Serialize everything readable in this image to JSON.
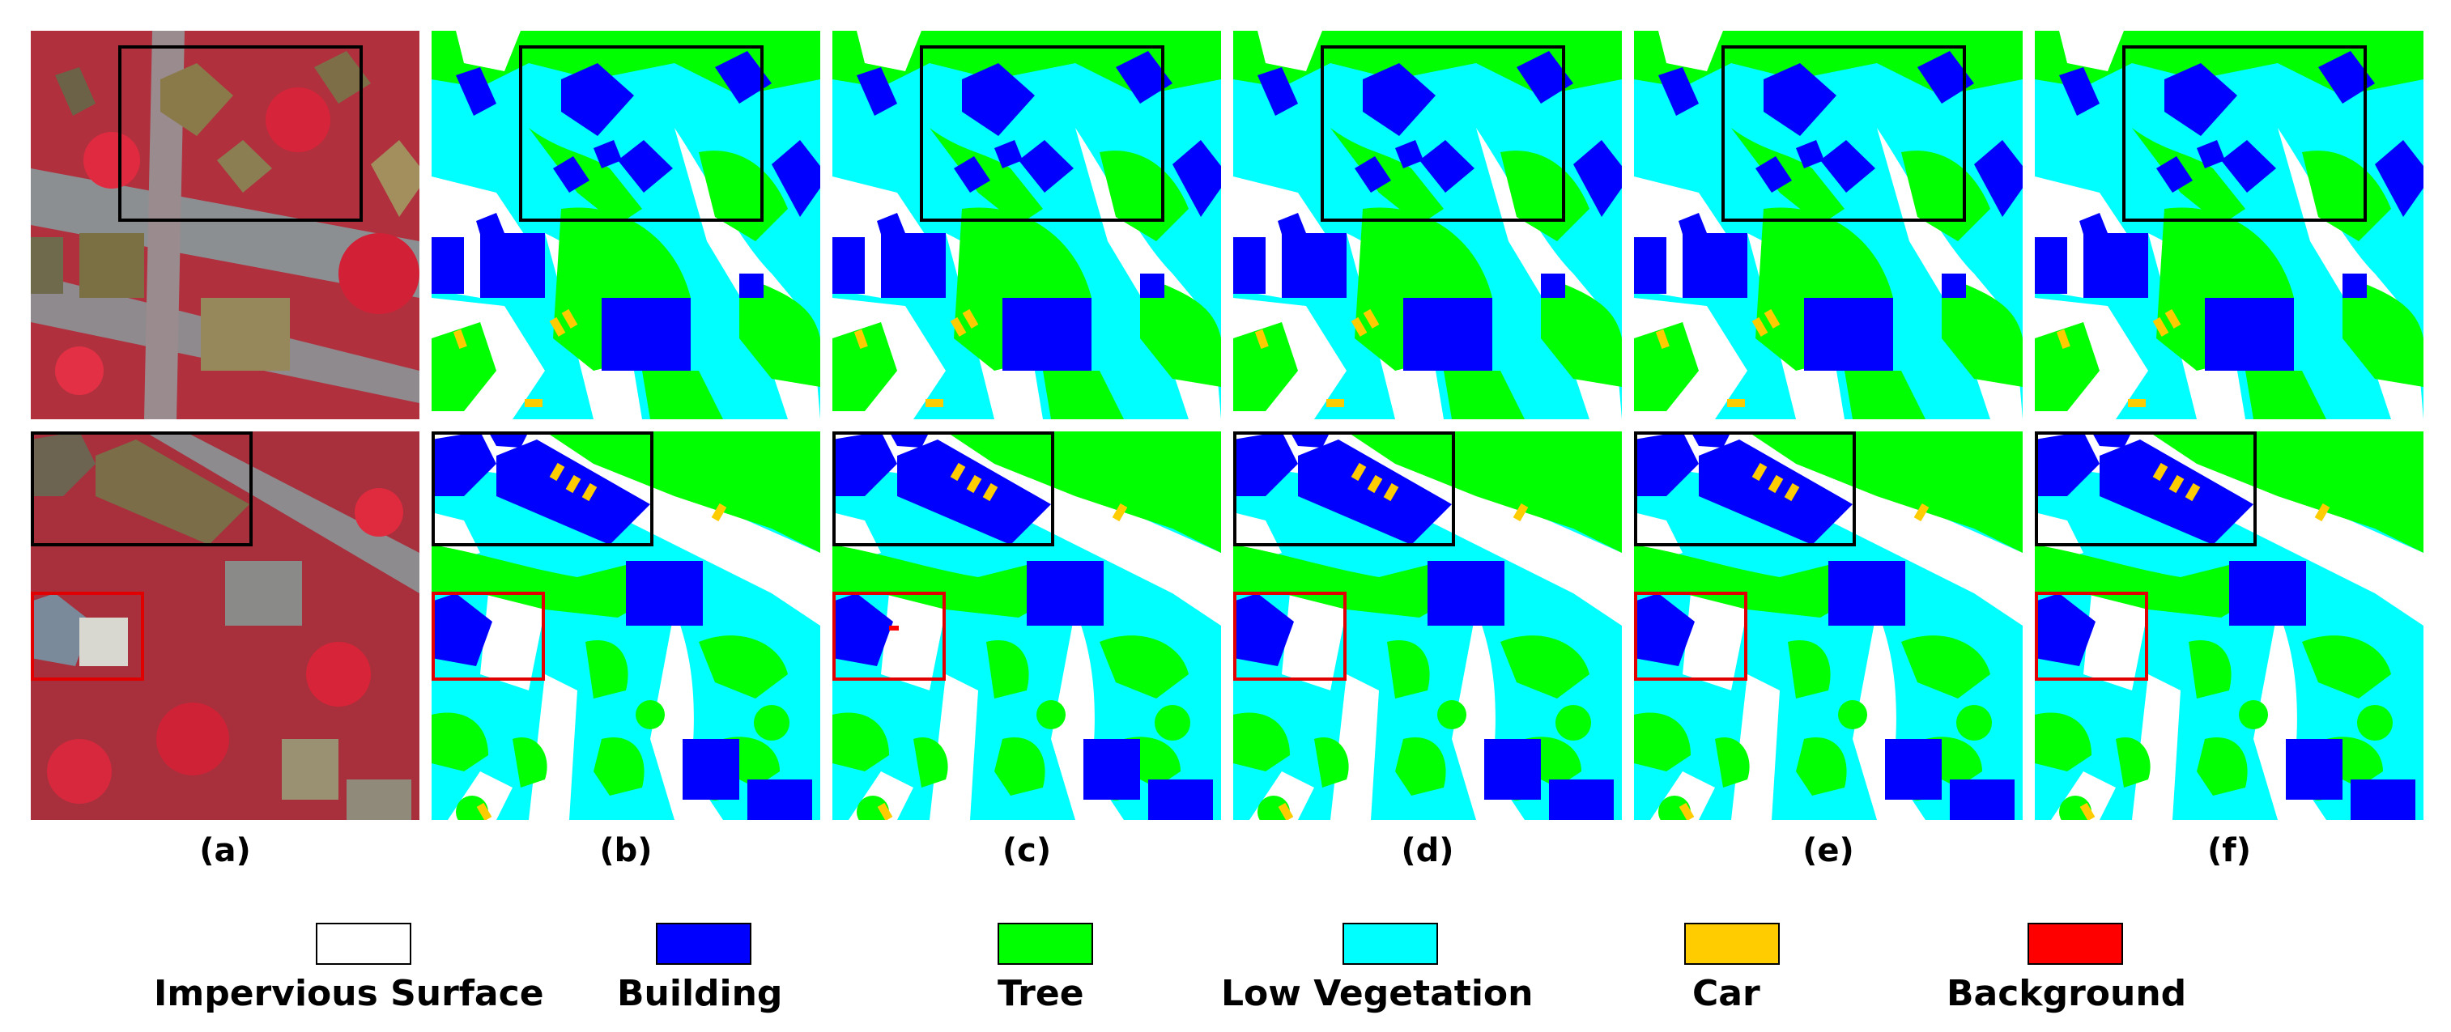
{
  "column_labels": [
    "(a)",
    "(b)",
    "(c)",
    "(d)",
    "(e)",
    "(f)"
  ],
  "legend": [
    {
      "label": "Impervious Surface",
      "color": "#ffffff"
    },
    {
      "label": "Building",
      "color": "#0000ff"
    },
    {
      "label": "Tree",
      "color": "#00ff00"
    },
    {
      "label": "Low Vegetation",
      "color": "#00ffff"
    },
    {
      "label": "Car",
      "color": "#ffcc00"
    },
    {
      "label": "Background",
      "color": "#ff0000"
    }
  ]
}
